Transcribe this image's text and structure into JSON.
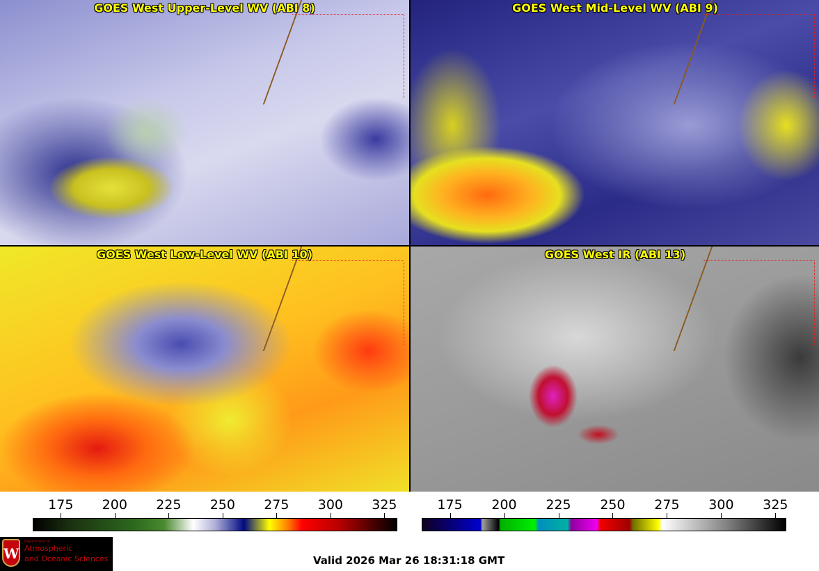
{
  "panels": [
    {
      "title": "GOES West Upper-Level WV (ABI 8)"
    },
    {
      "title": "GOES West Mid-Level WV (ABI 9)"
    },
    {
      "title": "GOES West Low-Level WV (ABI 10)"
    },
    {
      "title": "GOES West IR (ABI 13)"
    }
  ],
  "colorbars": {
    "wv": {
      "range": [
        162,
        331
      ],
      "ticks": [
        "175",
        "200",
        "225",
        "250",
        "275",
        "300",
        "325"
      ]
    },
    "ir": {
      "range": [
        162,
        330
      ],
      "ticks": [
        "175",
        "200",
        "225",
        "250",
        "275",
        "300",
        "325"
      ]
    }
  },
  "logo": {
    "small": "Department of",
    "line1": "Atmospheric",
    "line2": "and Oceanic Sciences",
    "letter": "W"
  },
  "valid_time": "Valid 2026 Mar 26 18:31:18 GMT"
}
